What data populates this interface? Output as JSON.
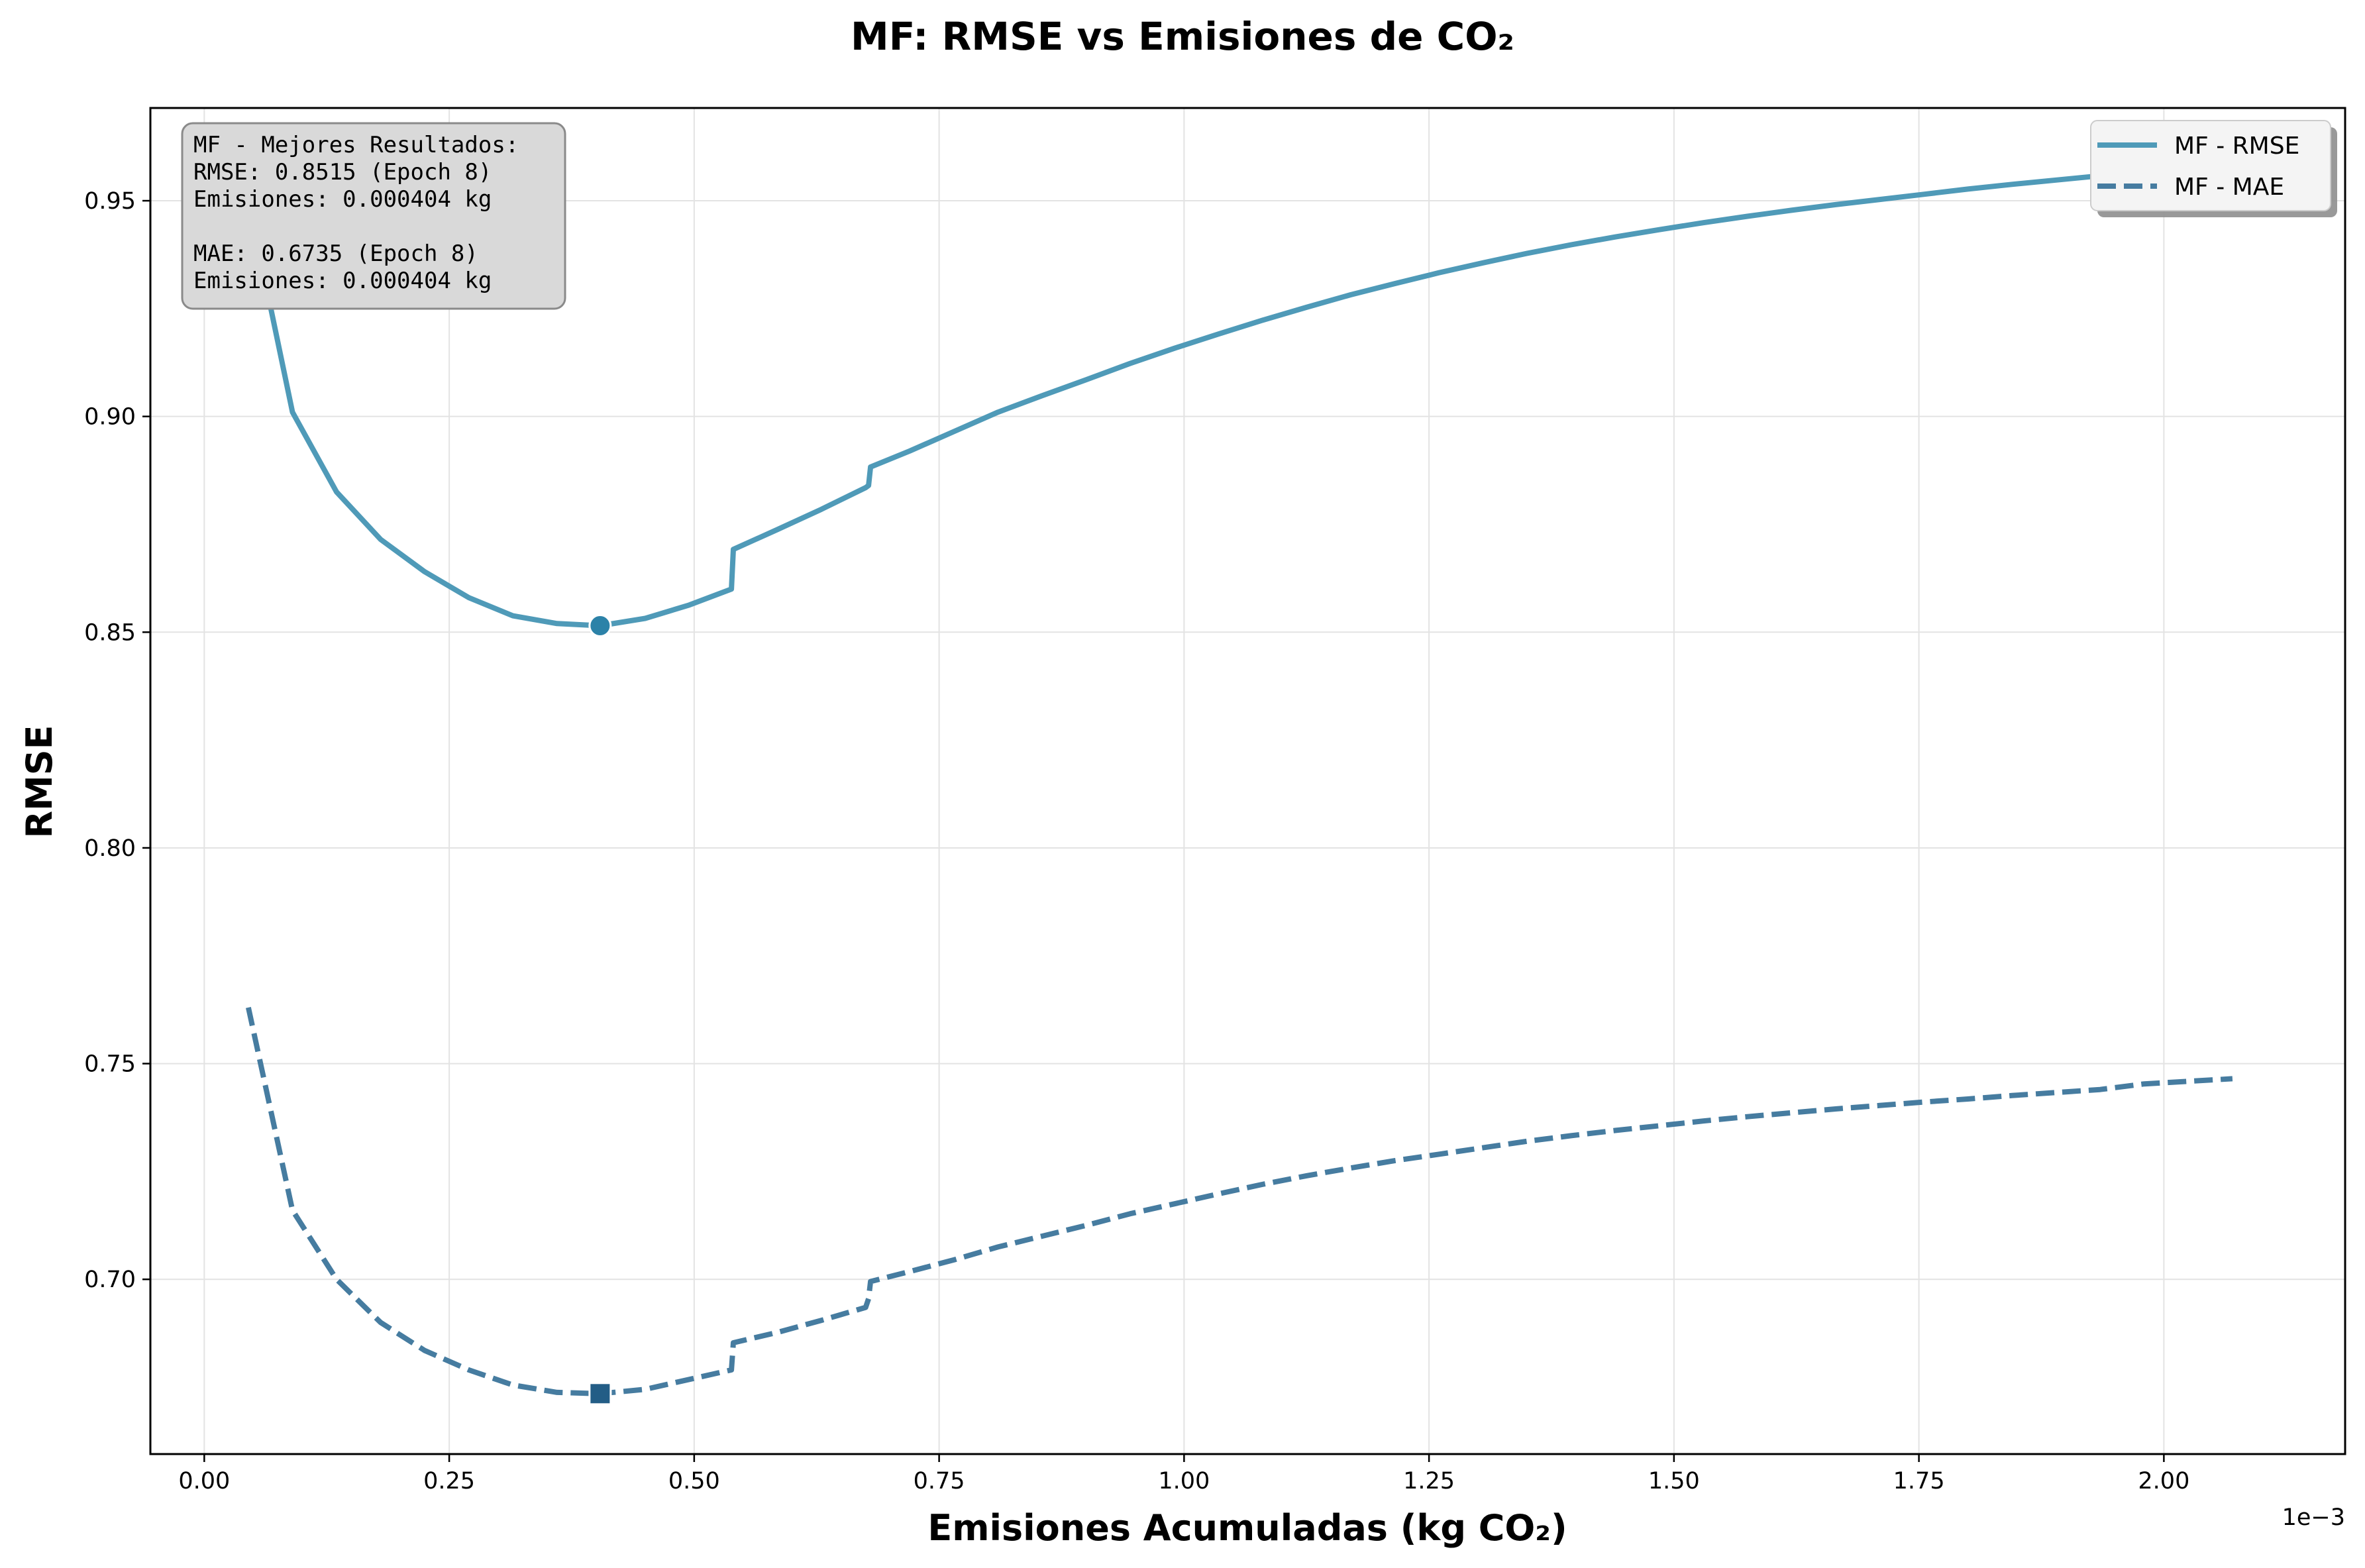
{
  "chart_data": {
    "type": "line",
    "title": "MF: RMSE vs Emisiones de CO₂",
    "xlabel": "Emisiones Acumuladas (kg CO₂)",
    "ylabel": "RMSE",
    "x_offset_label": "1e−3",
    "xlim": [
      -0.055,
      2.185
    ],
    "ylim": [
      0.6595,
      0.9715
    ],
    "x_scale_factor": 0.001,
    "x_ticks": [
      0.0,
      0.25,
      0.5,
      0.75,
      1.0,
      1.25,
      1.5,
      1.75,
      2.0
    ],
    "x_tick_labels": [
      "0.00",
      "0.25",
      "0.50",
      "0.75",
      "1.00",
      "1.25",
      "1.50",
      "1.75",
      "2.00"
    ],
    "y_ticks": [
      0.7,
      0.75,
      0.8,
      0.85,
      0.9,
      0.95
    ],
    "y_tick_labels": [
      "0.70",
      "0.75",
      "0.80",
      "0.85",
      "0.90",
      "0.95"
    ],
    "grid": true,
    "legend_position": "top-right",
    "series": [
      {
        "name": "MF - RMSE",
        "style": "solid",
        "color": "#4f9ab8",
        "x": [
          0.045,
          0.09,
          0.135,
          0.18,
          0.225,
          0.27,
          0.315,
          0.36,
          0.404,
          0.45,
          0.495,
          0.538,
          0.54,
          0.585,
          0.63,
          0.675,
          0.678,
          0.68,
          0.72,
          0.765,
          0.81,
          0.855,
          0.9,
          0.945,
          0.99,
          1.035,
          1.08,
          1.125,
          1.17,
          1.215,
          1.26,
          1.305,
          1.35,
          1.395,
          1.44,
          1.485,
          1.53,
          1.575,
          1.62,
          1.665,
          1.71,
          1.755,
          1.8,
          1.845,
          1.89,
          1.935,
          1.98,
          2.07
        ],
        "y": [
          0.95,
          0.901,
          0.8825,
          0.8715,
          0.864,
          0.858,
          0.8538,
          0.852,
          0.8515,
          0.8532,
          0.8563,
          0.86,
          0.8692,
          0.8738,
          0.8785,
          0.8835,
          0.884,
          0.8883,
          0.892,
          0.8965,
          0.901,
          0.9048,
          0.9085,
          0.9123,
          0.9158,
          0.9191,
          0.9223,
          0.9253,
          0.9282,
          0.9308,
          0.9333,
          0.9356,
          0.9378,
          0.9398,
          0.9416,
          0.9433,
          0.9449,
          0.9464,
          0.9478,
          0.9491,
          0.9503,
          0.9515,
          0.9527,
          0.9538,
          0.9548,
          0.9558,
          0.9566,
          0.957
        ]
      },
      {
        "name": "MF - MAE",
        "style": "dashed",
        "color": "#467ca0",
        "x": [
          0.045,
          0.09,
          0.135,
          0.18,
          0.225,
          0.27,
          0.315,
          0.36,
          0.404,
          0.45,
          0.495,
          0.538,
          0.54,
          0.585,
          0.63,
          0.675,
          0.678,
          0.68,
          0.72,
          0.765,
          0.81,
          0.855,
          0.9,
          0.945,
          0.99,
          1.035,
          1.08,
          1.125,
          1.17,
          1.215,
          1.26,
          1.305,
          1.35,
          1.395,
          1.44,
          1.485,
          1.53,
          1.575,
          1.62,
          1.665,
          1.71,
          1.755,
          1.8,
          1.845,
          1.89,
          1.935,
          1.98,
          2.07
        ],
        "y": [
          0.763,
          0.716,
          0.7,
          0.69,
          0.6835,
          0.679,
          0.6755,
          0.6738,
          0.6735,
          0.6745,
          0.6768,
          0.679,
          0.6853,
          0.6877,
          0.6905,
          0.6935,
          0.6955,
          0.6995,
          0.7018,
          0.7045,
          0.7075,
          0.71,
          0.7125,
          0.7152,
          0.7175,
          0.7198,
          0.722,
          0.724,
          0.7258,
          0.7275,
          0.729,
          0.7305,
          0.732,
          0.7333,
          0.7345,
          0.7356,
          0.7367,
          0.7377,
          0.7386,
          0.7395,
          0.7403,
          0.7411,
          0.7418,
          0.7426,
          0.7433,
          0.744,
          0.7453,
          0.7465
        ]
      }
    ],
    "best_markers": [
      {
        "series": "MF - RMSE",
        "x": 0.404,
        "y": 0.8515,
        "shape": "circle",
        "color": "#2c82a8"
      },
      {
        "series": "MF - MAE",
        "x": 0.404,
        "y": 0.6735,
        "shape": "square",
        "color": "#235d86"
      }
    ],
    "annotation_lines": [
      "MF - Mejores Resultados:",
      "RMSE: 0.8515 (Epoch 8)",
      "Emisiones: 0.000404 kg",
      "",
      "MAE: 0.6735 (Epoch 8)",
      "Emisiones: 0.000404 kg"
    ]
  }
}
